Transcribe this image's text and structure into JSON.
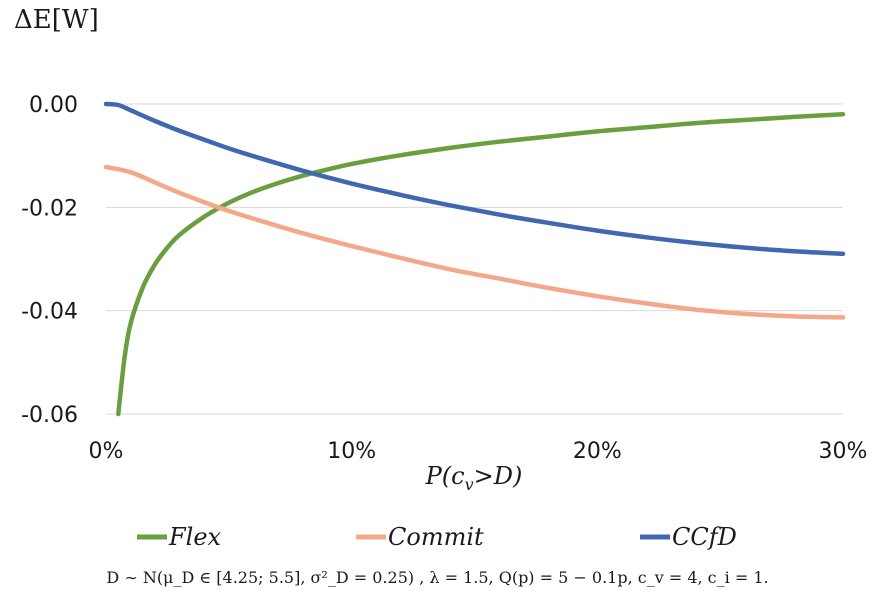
{
  "chart_data": {
    "type": "line",
    "ylabel": "ΔE[W]",
    "xlabel": "P(c_v>D)",
    "xlabel_main": "P(c",
    "xlabel_sub": "v",
    "xlabel_tail": ">D)",
    "x_ticks": [
      "0%",
      "10%",
      "20%",
      "30%"
    ],
    "y_ticks": [
      "0.00",
      "-0.02",
      "-0.04",
      "-0.06"
    ],
    "xlim": [
      0,
      0.3
    ],
    "ylim": [
      -0.06,
      0.0
    ],
    "grid": "horizontal",
    "legend_position": "bottom",
    "series": [
      {
        "name": "Flex",
        "color": "#6a9f3f",
        "x": [
          0.005,
          0.0075,
          0.01,
          0.015,
          0.02,
          0.025,
          0.03,
          0.04,
          0.05,
          0.06,
          0.07,
          0.08,
          0.09,
          0.1,
          0.12,
          0.14,
          0.16,
          0.18,
          0.2,
          0.22,
          0.24,
          0.26,
          0.28,
          0.3
        ],
        "values": [
          -0.06,
          -0.0493,
          -0.0425,
          -0.0355,
          -0.031,
          -0.0278,
          -0.0253,
          -0.0218,
          -0.0191,
          -0.017,
          -0.0153,
          -0.0139,
          -0.0127,
          -0.0116,
          -0.0099,
          -0.0085,
          -0.0073,
          -0.0063,
          -0.0053,
          -0.0045,
          -0.0037,
          -0.0031,
          -0.0025,
          -0.002
        ]
      },
      {
        "name": "Commit",
        "color": "#f3a88a",
        "x": [
          0.0,
          0.01,
          0.02,
          0.03,
          0.04,
          0.05,
          0.06,
          0.08,
          0.1,
          0.12,
          0.14,
          0.16,
          0.18,
          0.2,
          0.22,
          0.24,
          0.26,
          0.28,
          0.3
        ],
        "values": [
          -0.0122,
          -0.0132,
          -0.0152,
          -0.0172,
          -0.019,
          -0.0207,
          -0.0222,
          -0.025,
          -0.0275,
          -0.0298,
          -0.032,
          -0.0338,
          -0.0356,
          -0.0372,
          -0.0386,
          -0.0398,
          -0.0406,
          -0.0411,
          -0.0413
        ]
      },
      {
        "name": "CCfD",
        "color": "#4067b2",
        "x": [
          0.0,
          0.005,
          0.01,
          0.02,
          0.03,
          0.04,
          0.05,
          0.06,
          0.08,
          0.1,
          0.12,
          0.14,
          0.16,
          0.18,
          0.2,
          0.22,
          0.24,
          0.26,
          0.28,
          0.3
        ],
        "values": [
          0.0,
          -0.0002,
          -0.0012,
          -0.0033,
          -0.0052,
          -0.0069,
          -0.0086,
          -0.0101,
          -0.0129,
          -0.0154,
          -0.0176,
          -0.0196,
          -0.0214,
          -0.023,
          -0.0245,
          -0.0258,
          -0.0269,
          -0.0278,
          -0.0285,
          -0.029
        ]
      }
    ]
  },
  "footnote": "D ∼ N(μ_D ∈ [4.25; 5.5], σ²_D = 0.25) , λ = 1.5, Q(p) = 5 − 0.1p, c_v = 4, c_i = 1."
}
